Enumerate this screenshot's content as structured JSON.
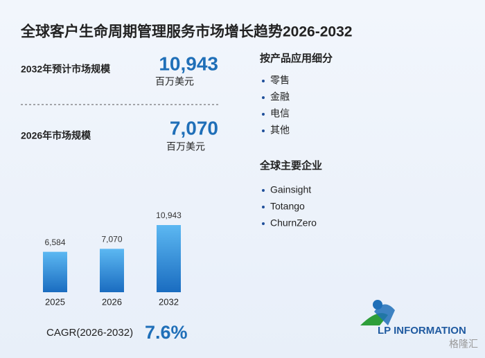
{
  "title": "全球客户生命周期管理服务市场增长趋势2026-2032",
  "stats": [
    {
      "label": "2032年预计市场规模",
      "value": "10,943",
      "unit": "百万美元"
    },
    {
      "label": "2026年市场规模",
      "value": "7,070",
      "unit": "百万美元"
    }
  ],
  "segments": {
    "title": "按产品应用细分",
    "items": [
      "零售",
      "金融",
      "电信",
      "其他"
    ]
  },
  "companies": {
    "title": "全球主要企业",
    "items": [
      "Gainsight",
      "Totango",
      "ChurnZero"
    ]
  },
  "chart_data": {
    "type": "bar",
    "categories": [
      "2025",
      "2026",
      "2032"
    ],
    "values": [
      6584,
      7070,
      10943
    ],
    "value_labels": [
      "6,584",
      "7,070",
      "10,943"
    ],
    "color": "#2a8ae0"
  },
  "cagr": {
    "label": "CAGR(2026-2032)",
    "value": "7.6%"
  },
  "logo": "LP INFORMATION",
  "watermark": "格隆汇"
}
